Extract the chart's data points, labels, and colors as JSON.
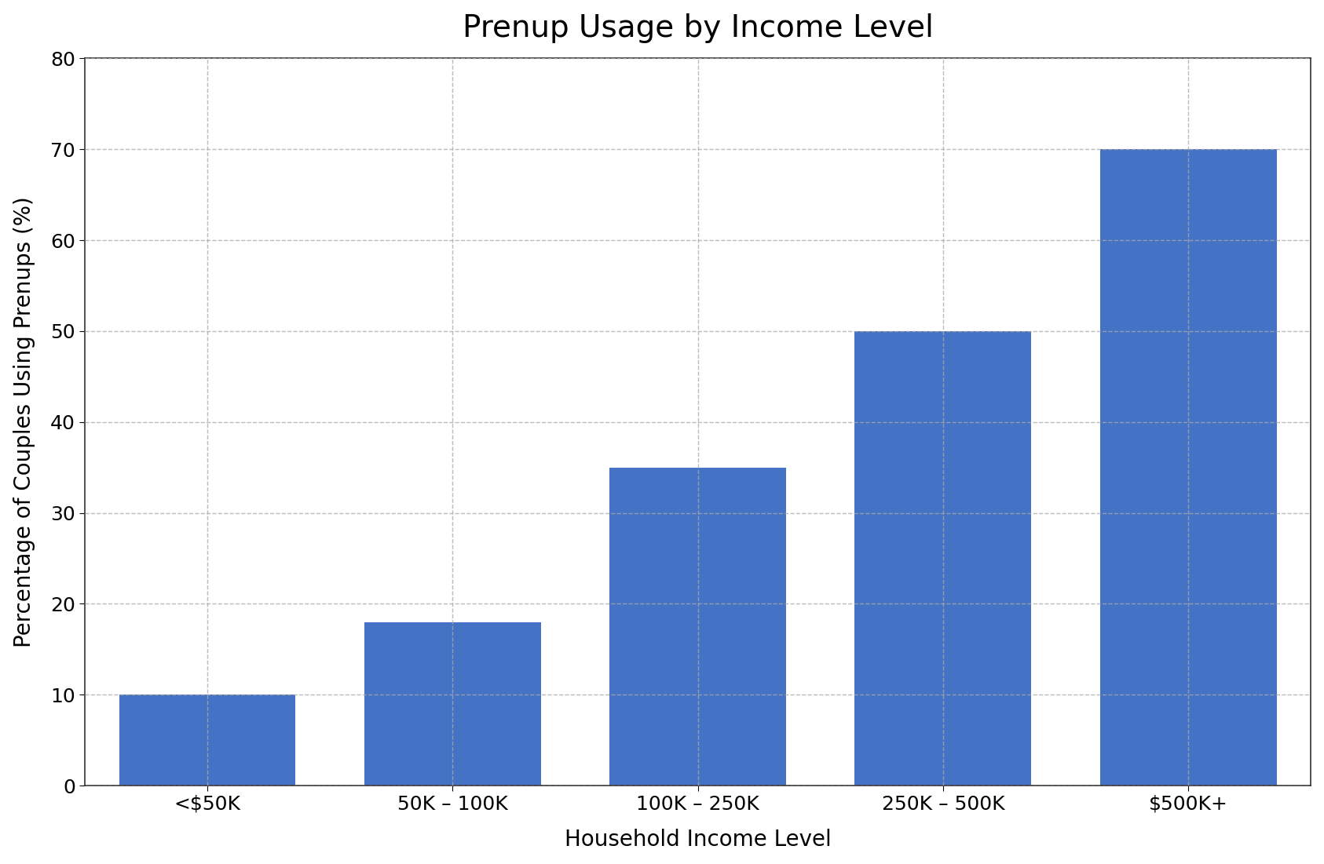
{
  "title": "Prenup Usage by Income Level",
  "xlabel": "Household Income Level",
  "ylabel": "Percentage of Couples Using Prenups (%)",
  "categories": [
    "<$50K",
    "50–100K",
    "100K–250K",
    "250K–500K",
    "$500K+"
  ],
  "categories_display": [
    "<$50K",
    "50 – 100K",
    "100K – 250K",
    "250K – 500K",
    "$500K+"
  ],
  "values": [
    10,
    18,
    35,
    50,
    70
  ],
  "bar_color": "#4472c4",
  "bar_edgecolor": "none",
  "ylim": [
    0,
    80
  ],
  "yticks": [
    0,
    10,
    20,
    30,
    40,
    50,
    60,
    70,
    80
  ],
  "grid_color": "#aaaaaa",
  "grid_linestyle": "--",
  "grid_linewidth": 1.0,
  "grid_alpha": 0.8,
  "title_fontsize": 28,
  "label_fontsize": 20,
  "tick_fontsize": 18,
  "background_color": "#ffffff",
  "bar_width": 0.72
}
